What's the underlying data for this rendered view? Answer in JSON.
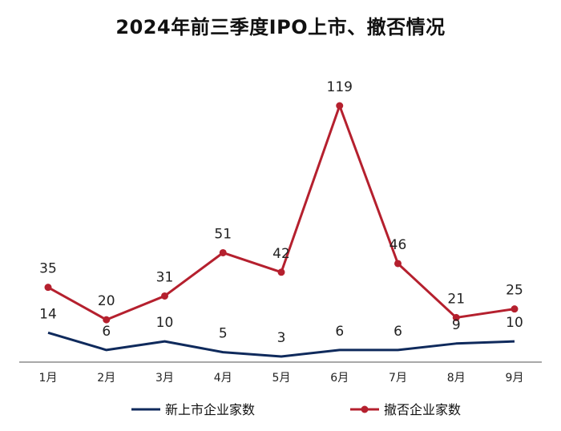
{
  "colors": {
    "new_listings": "#0f2a5c",
    "withdrawals": "#b5202e",
    "axis": "#8c8c8c"
  },
  "chart_data": {
    "type": "line",
    "title": "2024年前三季度IPO上市、撤否情况",
    "categories": [
      "1月",
      "2月",
      "3月",
      "4月",
      "5月",
      "6月",
      "7月",
      "8月",
      "9月"
    ],
    "series": [
      {
        "name": "新上市企业家数",
        "values": [
          14,
          6,
          10,
          5,
          3,
          6,
          6,
          9,
          10
        ],
        "marker": "none"
      },
      {
        "name": "撤否企业家数",
        "values": [
          35,
          20,
          31,
          51,
          42,
          119,
          46,
          21,
          25
        ],
        "marker": "circle"
      }
    ],
    "data_labels": true,
    "grid": false,
    "legend": "bottom"
  }
}
